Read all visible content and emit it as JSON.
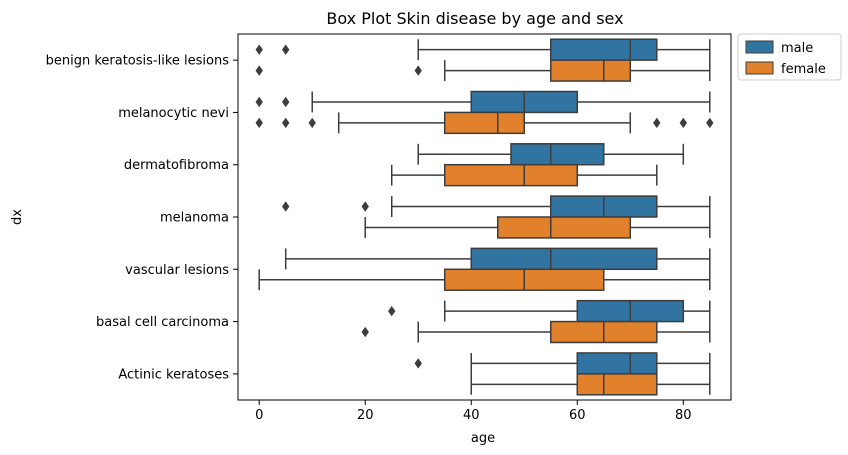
{
  "chart_data": {
    "type": "boxplot",
    "orientation": "horizontal",
    "title": "Box Plot Skin disease by age and sex",
    "xlabel": "age",
    "ylabel": "dx",
    "xlim": [
      -4,
      89
    ],
    "xticks": [
      0,
      20,
      40,
      60,
      80
    ],
    "legend_position": "outside-top-right",
    "categories": [
      "benign keratosis-like lesions",
      "melanocytic nevi",
      "dermatofibroma",
      "melanoma ",
      "vascular lesions",
      "basal cell carcinoma",
      "Actinic keratoses"
    ],
    "series": [
      {
        "name": "male",
        "color": "#3274a1",
        "boxes": [
          {
            "whislo": 30,
            "q1": 55,
            "med": 70,
            "q3": 75,
            "whishi": 85,
            "fliers": [
              0,
              5
            ]
          },
          {
            "whislo": 10,
            "q1": 40,
            "med": 50,
            "q3": 60,
            "whishi": 85,
            "fliers": [
              0,
              5
            ]
          },
          {
            "whislo": 30,
            "q1": 47.5,
            "med": 55,
            "q3": 65,
            "whishi": 80,
            "fliers": []
          },
          {
            "whislo": 25,
            "q1": 55,
            "med": 65,
            "q3": 75,
            "whishi": 85,
            "fliers": [
              5,
              20
            ]
          },
          {
            "whislo": 5,
            "q1": 40,
            "med": 55,
            "q3": 75,
            "whishi": 85,
            "fliers": []
          },
          {
            "whislo": 35,
            "q1": 60,
            "med": 70,
            "q3": 80,
            "whishi": 85,
            "fliers": [
              25
            ]
          },
          {
            "whislo": 40,
            "q1": 60,
            "med": 70,
            "q3": 75,
            "whishi": 85,
            "fliers": [
              30
            ]
          }
        ]
      },
      {
        "name": "female",
        "color": "#e1812c",
        "boxes": [
          {
            "whislo": 35,
            "q1": 55,
            "med": 65,
            "q3": 70,
            "whishi": 85,
            "fliers": [
              0,
              30
            ]
          },
          {
            "whislo": 15,
            "q1": 35,
            "med": 45,
            "q3": 50,
            "whishi": 70,
            "fliers": [
              0,
              5,
              10,
              75,
              80,
              85
            ]
          },
          {
            "whislo": 25,
            "q1": 35,
            "med": 50,
            "q3": 60,
            "whishi": 75,
            "fliers": []
          },
          {
            "whislo": 20,
            "q1": 45,
            "med": 55,
            "q3": 70,
            "whishi": 85,
            "fliers": []
          },
          {
            "whislo": 0,
            "q1": 35,
            "med": 50,
            "q3": 65,
            "whishi": 85,
            "fliers": []
          },
          {
            "whislo": 30,
            "q1": 55,
            "med": 65,
            "q3": 75,
            "whishi": 85,
            "fliers": [
              20
            ]
          },
          {
            "whislo": 40,
            "q1": 60,
            "med": 65,
            "q3": 75,
            "whishi": 85,
            "fliers": []
          }
        ]
      }
    ],
    "line_color": "#3d3d3d"
  }
}
